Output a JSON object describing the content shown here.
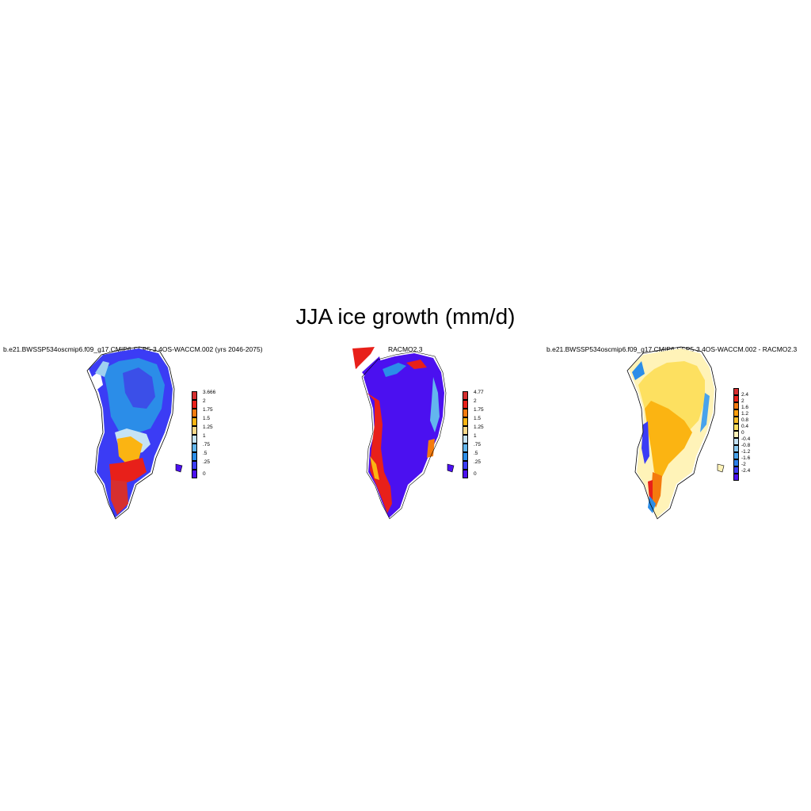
{
  "title": "JJA ice growth (mm/d)",
  "panels": [
    {
      "title": "b.e21.BWSSP534oscmip6.f09_g17.CMIP6-SSP5-3.4OS-WACCM.002 (yrs 2046-2075)",
      "colorbar": {
        "labels": [
          "3.666",
          "2",
          "1.75",
          "1.5",
          "1.25",
          "1",
          ".75",
          ".5",
          ".25",
          "0"
        ],
        "colors": [
          "#d62f2f",
          "#e8201a",
          "#f47b0e",
          "#fbb412",
          "#f8d98a",
          "#c5e3f5",
          "#63b6ee",
          "#2b8de8",
          "#3b3cf5",
          "#4b10f0"
        ]
      }
    },
    {
      "title": "RACMO2.3",
      "colorbar": {
        "labels": [
          "4.77",
          "2",
          "1.75",
          "1.5",
          "1.25",
          "1",
          ".75",
          ".5",
          ".25",
          "0"
        ],
        "colors": [
          "#d62f2f",
          "#e8201a",
          "#f47b0e",
          "#fbb412",
          "#f8d98a",
          "#c5e3f5",
          "#63b6ee",
          "#2b8de8",
          "#3b3cf5",
          "#4b10f0"
        ]
      }
    },
    {
      "title": "b.e21.BWSSP534oscmip6.f09_g17.CMIP6-SSP5-3.4OS-WACCM.002 - RACMO2.3",
      "colorbar": {
        "labels": [
          "2.4",
          "2",
          "1.6",
          "1.2",
          "0.8",
          "0.4",
          "0",
          "-0.4",
          "-0.8",
          "-1.2",
          "-1.6",
          "-2",
          "-2.4"
        ],
        "colors": [
          "#d62f2f",
          "#e8201a",
          "#f47b0e",
          "#fb9e0e",
          "#fbc02a",
          "#fde060",
          "#fff3b8",
          "#c5e3f5",
          "#8ccaf2",
          "#48a3ec",
          "#2b7fe8",
          "#3b3cf5",
          "#4b10f0"
        ]
      }
    }
  ]
}
